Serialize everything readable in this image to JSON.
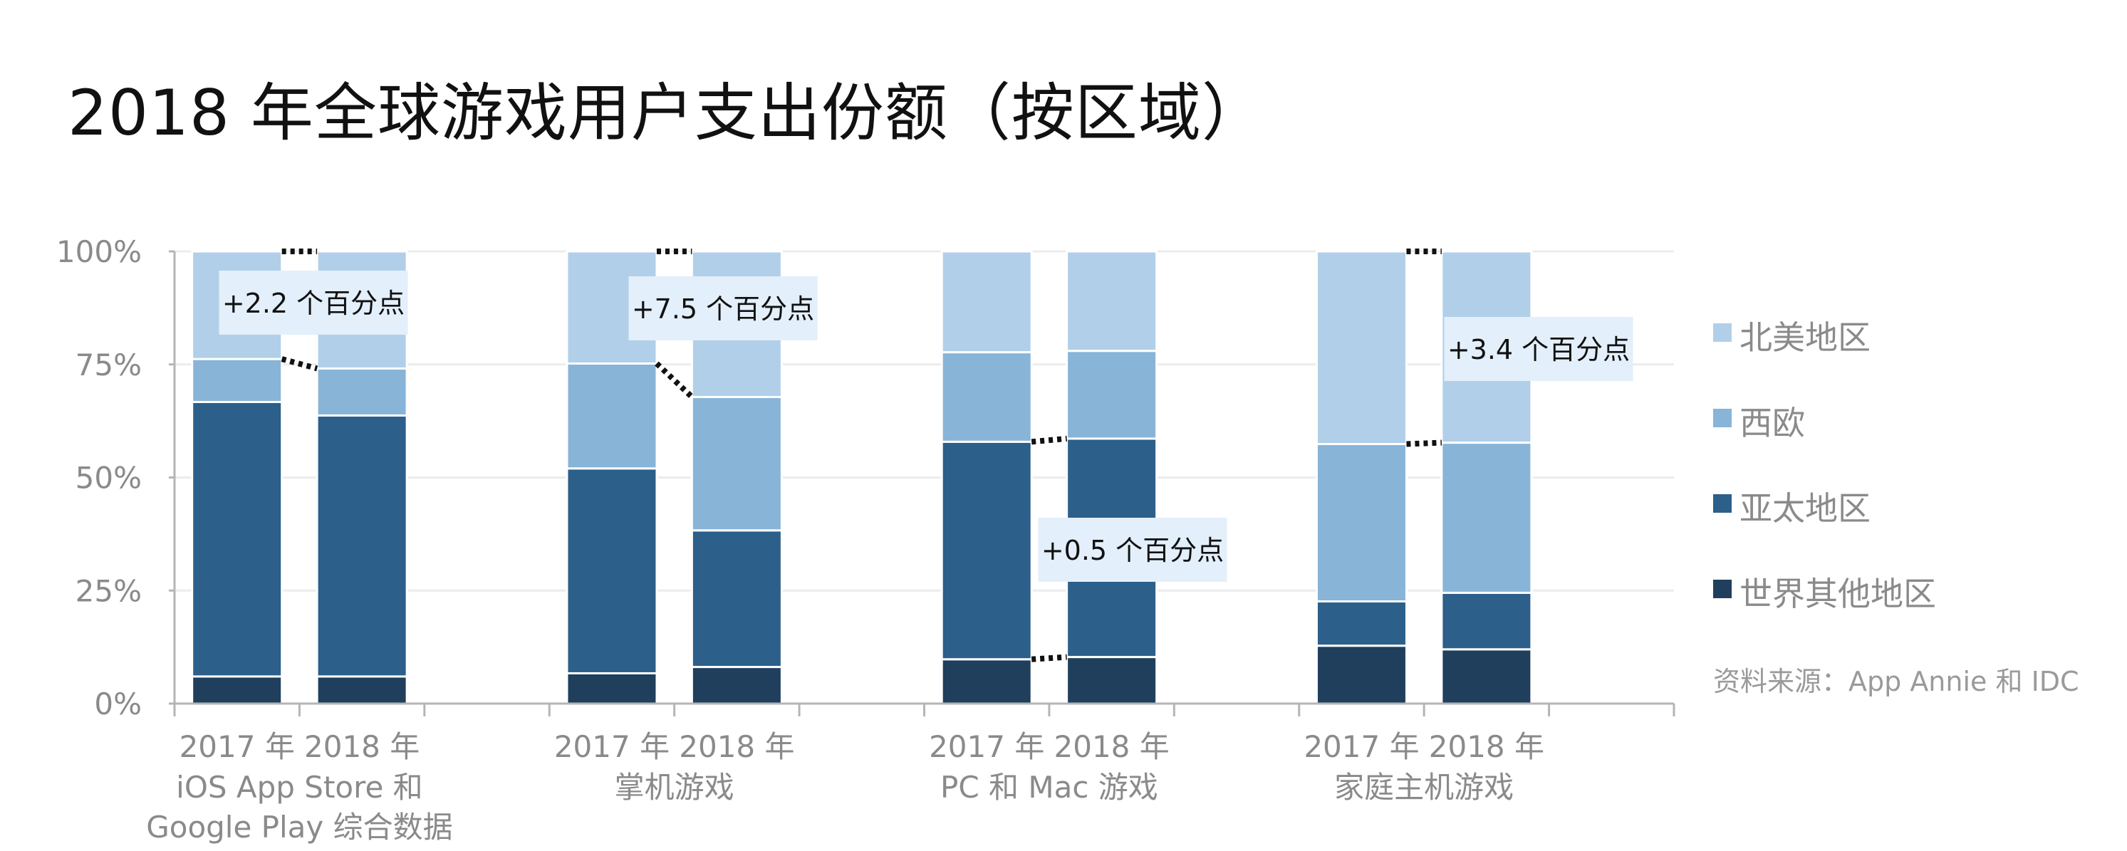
{
  "chart_data": {
    "type": "bar",
    "stacked": true,
    "percent": true,
    "title": "2018 年全球游戏用户支出份额（按区域）",
    "ylim": [
      0,
      100
    ],
    "y_ticks": [
      "0%",
      "25%",
      "50%",
      "75%",
      "100%"
    ],
    "grid": true,
    "legend_placement": "right",
    "groups": [
      {
        "label_lines": [
          "iOS App Store 和",
          "Google Play 综合数据"
        ],
        "bars": [
          {
            "year": "2017 年",
            "values": [
              6,
              60.7,
              9.5,
              23.8
            ]
          },
          {
            "year": "2018 年",
            "values": [
              6,
              57.7,
              10.4,
              25.9
            ]
          }
        ]
      },
      {
        "label_lines": [
          "掌机游戏"
        ],
        "bars": [
          {
            "year": "2017 年",
            "values": [
              6.7,
              45.3,
              23.2,
              24.8
            ]
          },
          {
            "year": "2018 年",
            "values": [
              8.1,
              30.2,
              29.5,
              32.2
            ]
          }
        ]
      },
      {
        "label_lines": [
          "PC 和 Mac 游戏"
        ],
        "bars": [
          {
            "year": "2017 年",
            "values": [
              9.8,
              48.1,
              19.8,
              22.3
            ]
          },
          {
            "year": "2018 年",
            "values": [
              10.3,
              48.3,
              19.4,
              22.0
            ]
          }
        ]
      },
      {
        "label_lines": [
          "家庭主机游戏"
        ],
        "bars": [
          {
            "year": "2017 年",
            "values": [
              12.8,
              9.8,
              34.8,
              42.6
            ]
          },
          {
            "year": "2018 年",
            "values": [
              12.0,
              12.5,
              33.2,
              42.3
            ]
          }
        ]
      }
    ],
    "series": [
      {
        "name": "世界其他地区",
        "color": "#1f3f5c"
      },
      {
        "name": "亚太地区",
        "color": "#2c5f8a"
      },
      {
        "name": "西欧",
        "color": "#88b4d8"
      },
      {
        "name": "北美地区",
        "color": "#b1cfe8"
      }
    ],
    "annotations": [
      {
        "group": 0,
        "text": "+2.2 个百分点"
      },
      {
        "group": 1,
        "text": "+7.5 个百分点"
      },
      {
        "group": 2,
        "text": "+0.5 个百分点"
      },
      {
        "group": 3,
        "text": "+3.4 个百分点"
      }
    ],
    "source": "资料来源：App Annie 和 IDC"
  }
}
